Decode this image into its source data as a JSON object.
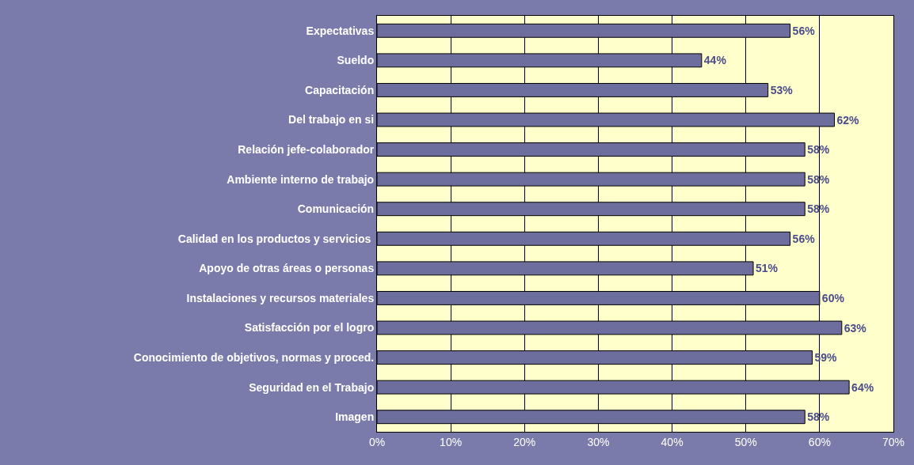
{
  "chart_data": {
    "type": "bar",
    "orientation": "horizontal",
    "categories": [
      "Expectativas",
      "Sueldo",
      "Capacitación",
      "Del trabajo en si",
      "Relación jefe-colaborador",
      "Ambiente interno de trabajo",
      "Comunicación",
      "Calidad en los productos y servicios ",
      "Apoyo de otras áreas o personas",
      "Instalaciones y recursos materiales",
      "Satisfacción por el logro",
      "Conocimiento de objetivos, normas y proced.",
      "Seguridad en el Trabajo",
      "Imagen"
    ],
    "values": [
      56,
      44,
      53,
      62,
      58,
      58,
      58,
      56,
      51,
      60,
      63,
      59,
      64,
      58
    ],
    "value_labels": [
      "56%",
      "44%",
      "53%",
      "62%",
      "58%",
      "58%",
      "58%",
      "56%",
      "51%",
      "60%",
      "63%",
      "59%",
      "64%",
      "58%"
    ],
    "color": "#6e6e9e",
    "xlim": [
      0,
      70
    ],
    "xticks": [
      {
        "value": 0,
        "label": "0%"
      },
      {
        "value": 10,
        "label": "10%"
      },
      {
        "value": 20,
        "label": "20%"
      },
      {
        "value": 30,
        "label": "30%"
      },
      {
        "value": 40,
        "label": "40%"
      },
      {
        "value": 50,
        "label": "50%"
      },
      {
        "value": 60,
        "label": "60%"
      },
      {
        "value": 70,
        "label": "70%"
      }
    ],
    "grid": "x",
    "legend": false
  }
}
